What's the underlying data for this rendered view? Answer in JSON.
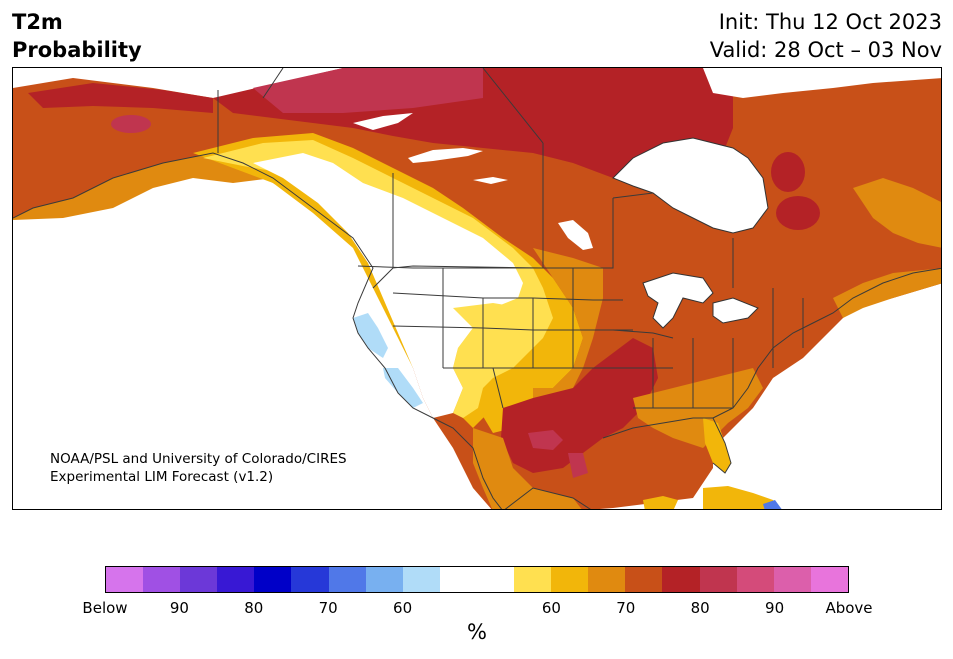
{
  "title": {
    "line1": "T2m",
    "line2": "Probability"
  },
  "dates": {
    "init": "Init: Thu 12 Oct 2023",
    "valid": "Valid: 28 Oct – 03 Nov"
  },
  "credit": {
    "line1": "NOAA/PSL and University of Colorado/CIRES",
    "line2": "Experimental LIM Forecast (v1.2)"
  },
  "colorbar": {
    "colors": [
      "#d674ec",
      "#a050e4",
      "#6c38d8",
      "#3818d4",
      "#0000c8",
      "#2638d8",
      "#5078e8",
      "#78b0f0",
      "#b0dcf8",
      "#ffffff",
      "#ffffff",
      "#ffe050",
      "#f2b60a",
      "#e08a10",
      "#c85018",
      "#b42226",
      "#c0354f",
      "#d44b7a",
      "#dc5fab",
      "#e874dc"
    ],
    "tick_labels": [
      "Below",
      "90",
      "80",
      "70",
      "60",
      "60",
      "70",
      "80",
      "90",
      "Above"
    ],
    "unit": "%"
  },
  "palette": {
    "land_white": "#ffffff",
    "yellow": "#ffe050",
    "gold": "#f2b60a",
    "orange": "#e08a10",
    "burnt": "#c85018",
    "red": "#b42226",
    "crimson": "#c0354f",
    "light_blue": "#b0dcf8",
    "mid_blue": "#5078e8"
  }
}
